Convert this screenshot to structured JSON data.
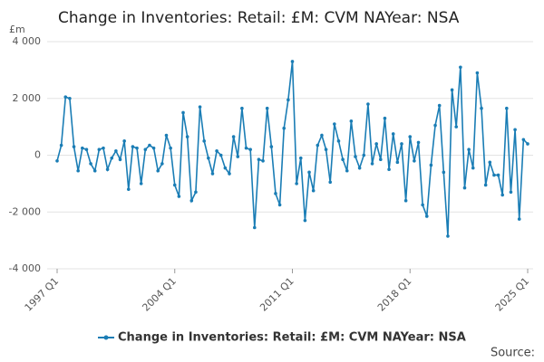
{
  "chart_data": {
    "type": "line",
    "title": "Change in Inventories: Retail: £M: CVM NAYear: NSA",
    "y_unit": "£m",
    "source": "Source:",
    "categories": [
      "1997 Q1",
      null,
      null,
      null,
      null,
      null,
      null,
      null,
      null,
      null,
      null,
      null,
      null,
      null,
      null,
      null,
      null,
      null,
      null,
      null,
      null,
      null,
      null,
      null,
      null,
      null,
      null,
      null,
      "2004 Q1",
      null,
      null,
      null,
      null,
      null,
      null,
      null,
      null,
      null,
      null,
      null,
      null,
      null,
      null,
      null,
      null,
      null,
      null,
      null,
      null,
      null,
      null,
      null,
      null,
      null,
      null,
      null,
      "2011 Q1",
      null,
      null,
      null,
      null,
      null,
      null,
      null,
      null,
      null,
      null,
      null,
      null,
      null,
      null,
      null,
      null,
      null,
      null,
      null,
      null,
      null,
      null,
      null,
      null,
      null,
      null,
      null,
      "2018 Q1",
      null,
      null,
      null,
      null,
      null,
      null,
      null,
      null,
      null,
      null,
      null,
      null,
      null,
      null,
      null,
      null,
      null,
      null,
      null,
      null,
      null,
      null,
      null,
      null,
      null,
      null,
      null,
      "2025 Q1"
    ],
    "series": [
      {
        "name": "Change in Inventories: Retail: £M: CVM NAYear: NSA",
        "color": "#1a7db5",
        "values": [
          -200,
          350,
          2050,
          2000,
          300,
          -550,
          250,
          200,
          -300,
          -550,
          200,
          250,
          -500,
          -100,
          150,
          -150,
          500,
          -1200,
          300,
          250,
          -1000,
          200,
          350,
          250,
          -550,
          -300,
          700,
          250,
          -1050,
          -1450,
          1500,
          650,
          -1600,
          -1300,
          1700,
          500,
          -100,
          -650,
          150,
          0,
          -450,
          -650,
          650,
          -50,
          1650,
          250,
          200,
          -2550,
          -150,
          -200,
          1650,
          300,
          -1350,
          -1750,
          950,
          1950,
          3300,
          -1000,
          -100,
          -2300,
          -600,
          -1250,
          350,
          700,
          200,
          -950,
          1100,
          500,
          -150,
          -550,
          1200,
          -50,
          -450,
          0,
          1800,
          -300,
          400,
          -150,
          1300,
          -500,
          750,
          -250,
          400,
          -1600,
          650,
          -200,
          450,
          -1750,
          -2150,
          -350,
          1050,
          1750,
          -600,
          -2850,
          2300,
          1000,
          3100,
          -1150,
          200,
          -450,
          2900,
          1650,
          -1050,
          -250,
          -700,
          -700,
          -1400,
          1650,
          -1300,
          900,
          -2250,
          550,
          400
        ]
      }
    ],
    "ylim": [
      -4000,
      4000
    ],
    "yticks": [
      {
        "value": -4000,
        "label": "-4 000"
      },
      {
        "value": -2000,
        "label": "-2 000"
      },
      0,
      {
        "value": 2000,
        "label": "2 000"
      },
      {
        "value": 4000,
        "label": "4 000"
      }
    ],
    "grid": true
  }
}
